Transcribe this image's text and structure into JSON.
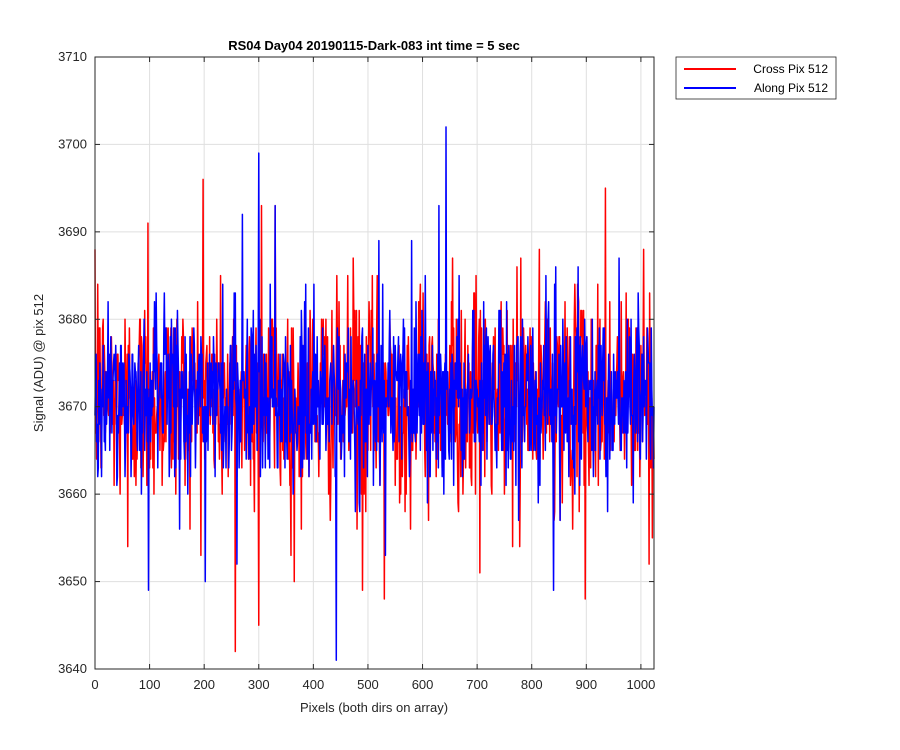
{
  "chart_data": {
    "type": "line",
    "title": "RS04 Day04 20190115-Dark-083 int time = 5 sec",
    "xlabel": "Pixels (both dirs on array)",
    "ylabel": "Signal (ADU) @ pix 512",
    "xlim": [
      0,
      1024
    ],
    "ylim": [
      3640,
      3710
    ],
    "xticks": [
      0,
      100,
      200,
      300,
      400,
      500,
      600,
      700,
      800,
      900,
      1000
    ],
    "yticks": [
      3640,
      3650,
      3660,
      3670,
      3680,
      3690,
      3700,
      3710
    ],
    "grid": true,
    "legend_position": "outside-top-right",
    "series": [
      {
        "name": "Cross Pix 512",
        "color": "#ff0000",
        "noise_mean": 3671,
        "noise_std": 6,
        "peaks": [
          [
            5,
            3684
          ],
          [
            97,
            3691
          ],
          [
            198,
            3696
          ],
          [
            305,
            3693
          ],
          [
            330,
            3693
          ],
          [
            473,
            3687
          ],
          [
            655,
            3687
          ],
          [
            705,
            3695
          ],
          [
            780,
            3687
          ],
          [
            935,
            3695
          ],
          [
            1005,
            3688
          ]
        ],
        "troughs": [
          [
            60,
            3654
          ],
          [
            257,
            3642
          ],
          [
            300,
            3645
          ],
          [
            365,
            3650
          ],
          [
            490,
            3649
          ],
          [
            530,
            3648
          ],
          [
            705,
            3651
          ],
          [
            778,
            3654
          ],
          [
            898,
            3648
          ],
          [
            1015,
            3652
          ]
        ]
      },
      {
        "name": "Along Pix 512",
        "color": "#0000ff",
        "noise_mean": 3671,
        "noise_std": 5,
        "peaks": [
          [
            300,
            3699
          ],
          [
            330,
            3693
          ],
          [
            270,
            3692
          ],
          [
            520,
            3689
          ],
          [
            580,
            3689
          ],
          [
            630,
            3693
          ],
          [
            643,
            3702
          ],
          [
            885,
            3686
          ],
          [
            960,
            3687
          ]
        ],
        "troughs": [
          [
            98,
            3649
          ],
          [
            202,
            3650
          ],
          [
            260,
            3652
          ],
          [
            442,
            3641
          ],
          [
            532,
            3653
          ],
          [
            840,
            3649
          ]
        ]
      }
    ]
  }
}
